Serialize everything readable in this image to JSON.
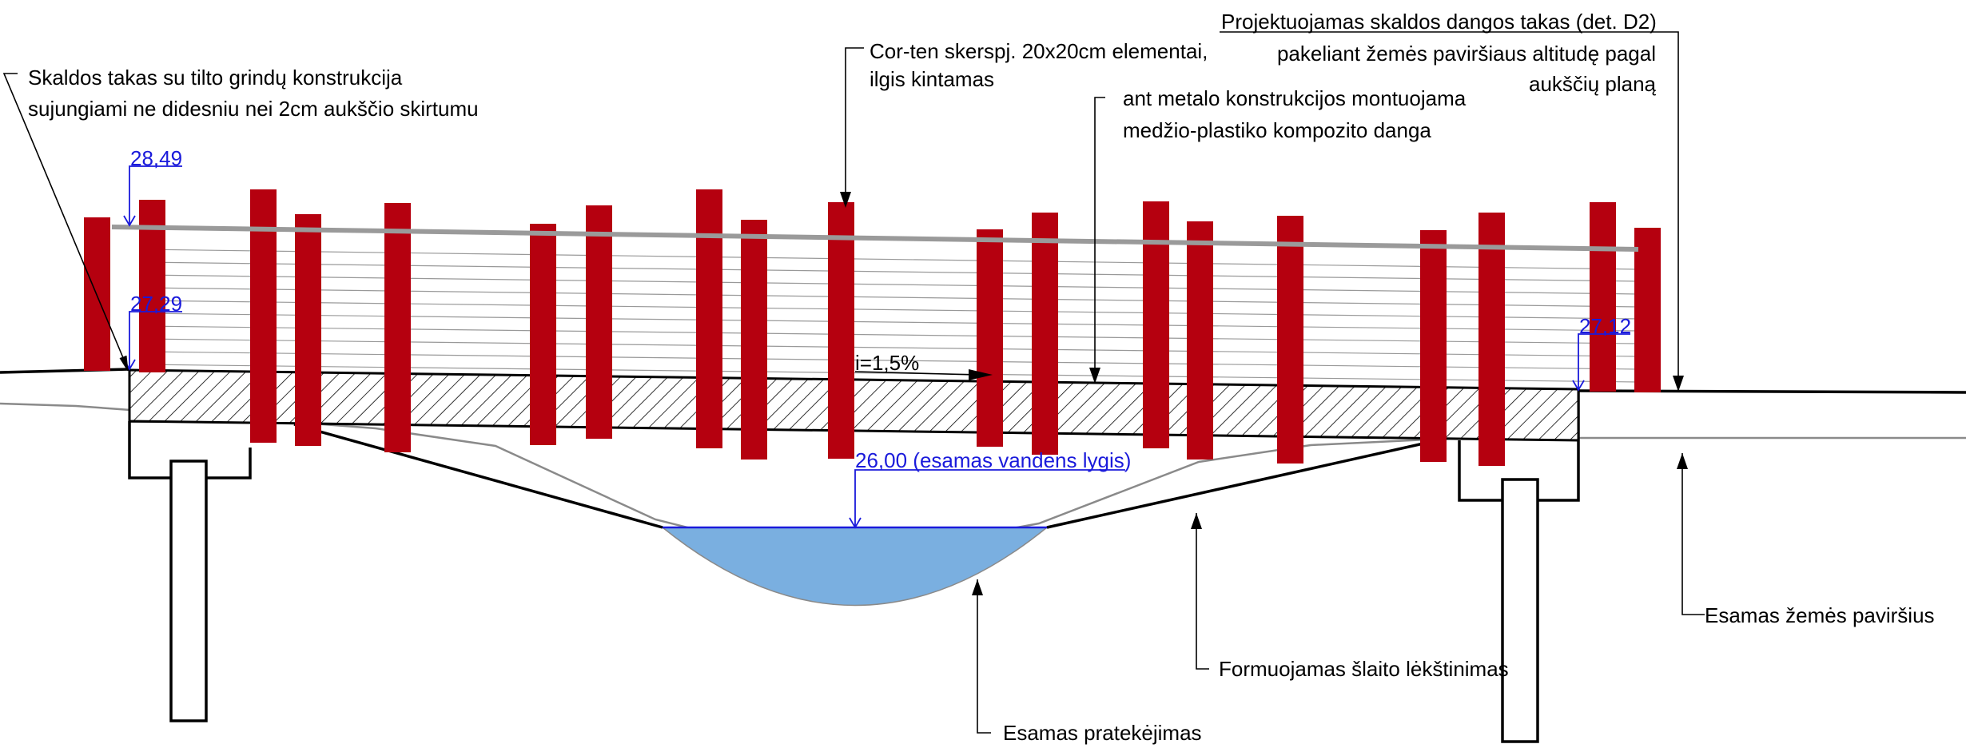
{
  "labels": {
    "skaldos_line1": "Skaldos takas su tilto grindų konstrukcija",
    "skaldos_line2": "sujungiami ne didesniu nei 2cm aukščio skirtumu",
    "corten_line1": "Cor-ten skerspj. 20x20cm elementai,",
    "corten_line2": "ilgis kintamas",
    "metalo_line1": "ant metalo konstrukcijos montuojama",
    "metalo_line2": "medžio-plastiko kompozito danga",
    "proj_line1": "Projektuojamas skaldos dangos takas (det. D2)",
    "proj_line2": "pakeliant žemės paviršiaus altitudę pagal",
    "proj_line3": "aukščių planą",
    "slope": "i=1,5%",
    "esamas_zemes": "Esamas  žemės paviršius",
    "formuojamas": "Formuojamas šlaito lėkštinimas",
    "pratekejimas": "Esamas pratekėjimas"
  },
  "elevations": {
    "top_rail": "28,49",
    "deck_left": "27,29",
    "deck_right": "27,12",
    "water": "26,00 (esamas vandens lygis)"
  },
  "colors": {
    "post": "#b5000f",
    "water": "#7aafe0",
    "elevation_text": "#1a1adb",
    "handrail": "#9a9a9a"
  }
}
